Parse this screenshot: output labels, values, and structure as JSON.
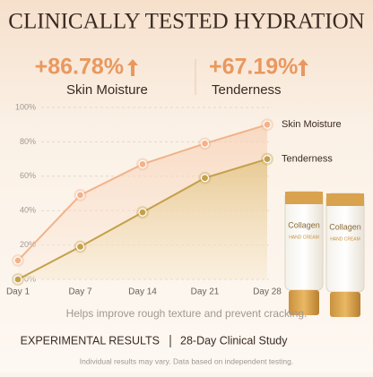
{
  "header": {
    "title": "CLINICALLY TESTED HYDRATION"
  },
  "stats": [
    {
      "value": "+86.78%",
      "label": "Skin Moisture"
    },
    {
      "value": "+67.19%",
      "label": "Tenderness"
    }
  ],
  "chart_data": {
    "type": "line",
    "categories": [
      "Day 1",
      "Day 7",
      "Day 14",
      "Day 21",
      "Day 28"
    ],
    "series": [
      {
        "name": "Skin Moisture",
        "color": "#f2b28a",
        "values": [
          11,
          49,
          67,
          79,
          90
        ]
      },
      {
        "name": "Tenderness",
        "color": "#c4a04a",
        "values": [
          0,
          19,
          39,
          59,
          70
        ]
      }
    ],
    "ylim": [
      0,
      100
    ],
    "yticks": [
      {
        "value": 0,
        "label": "0%"
      },
      {
        "value": 20,
        "label": "20%"
      },
      {
        "value": 40,
        "label": "40%"
      },
      {
        "value": 60,
        "label": "60%"
      },
      {
        "value": 80,
        "label": "80%"
      },
      {
        "value": 100,
        "label": "100%"
      }
    ],
    "grid": true
  },
  "product": {
    "brand": "Collagen",
    "name": "HAND CREAM"
  },
  "caption": "Helps improve rough texture and prevent cracking.",
  "footer": {
    "left": "EXPERIMENTAL RESULTS",
    "right": "28-Day Clinical Study",
    "note": "Individual results may vary. Data based on independent testing."
  }
}
